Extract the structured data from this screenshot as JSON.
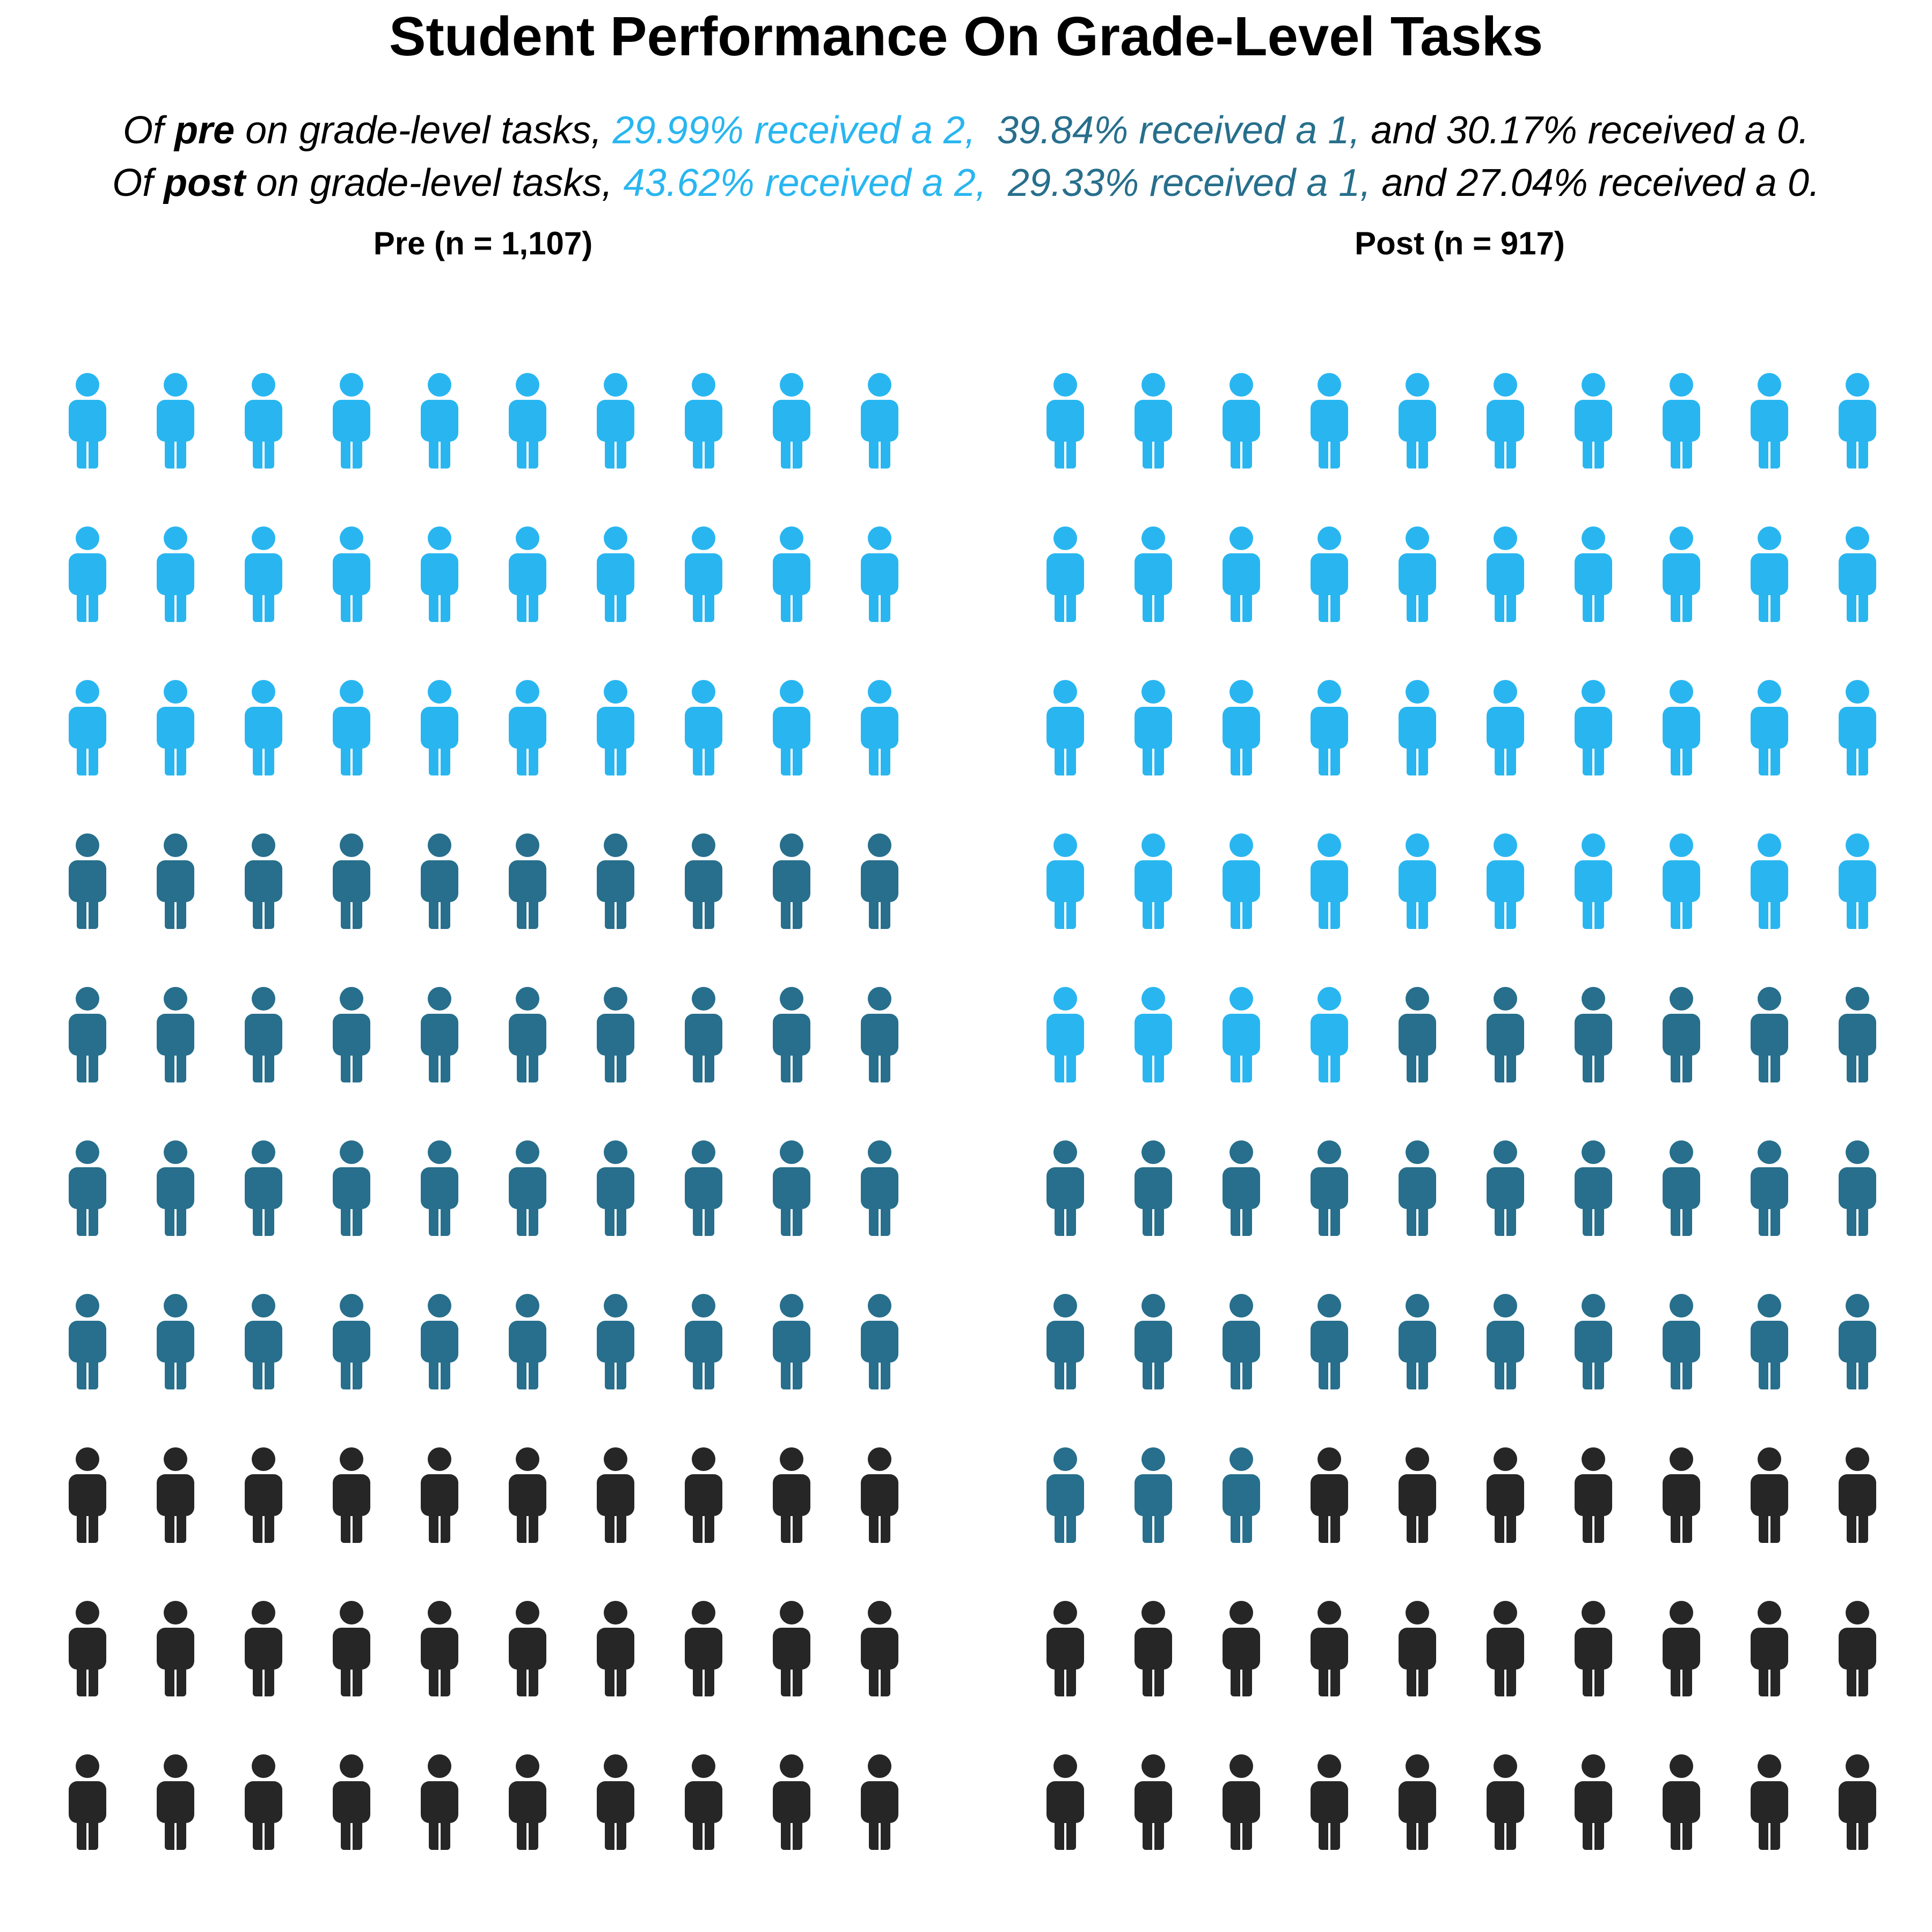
{
  "title": "Student Performance On Grade-Level Tasks",
  "summary": {
    "pre": {
      "prefix": "Of ",
      "keyword": "pre",
      "middle": " on grade-level tasks, ",
      "score2_text": "29.99% received a 2, ",
      "score1_text": " 39.84% received a 1,",
      "score0_text": " and 30.17% received a 0."
    },
    "post": {
      "prefix": "Of ",
      "keyword": "post",
      "middle": " on grade-level tasks, ",
      "score2_text": "43.62% received a 2, ",
      "score1_text": " 29.33% received a 1,",
      "score0_text": " and 27.04% received a 0."
    }
  },
  "colors": {
    "score2": "#29b6f0",
    "score1": "#276f8c",
    "score0": "#262626"
  },
  "chart_data": [
    {
      "type": "pictograph",
      "panel": "Pre",
      "label": "Pre (n = 1,107)",
      "n": 1107,
      "percentages": {
        "2": 29.99,
        "1": 39.84,
        "0": 30.17
      },
      "icon_counts": {
        "2": 30,
        "1": 40,
        "0": 30
      },
      "icons_total": 100,
      "grid": {
        "rows": 10,
        "cols": 10
      }
    },
    {
      "type": "pictograph",
      "panel": "Post",
      "label": "Post (n = 917)",
      "n": 917,
      "percentages": {
        "2": 43.62,
        "1": 29.33,
        "0": 27.04
      },
      "icon_counts": {
        "2": 44,
        "1": 29,
        "0": 27
      },
      "icons_total": 100,
      "grid": {
        "rows": 10,
        "cols": 10
      }
    }
  ]
}
